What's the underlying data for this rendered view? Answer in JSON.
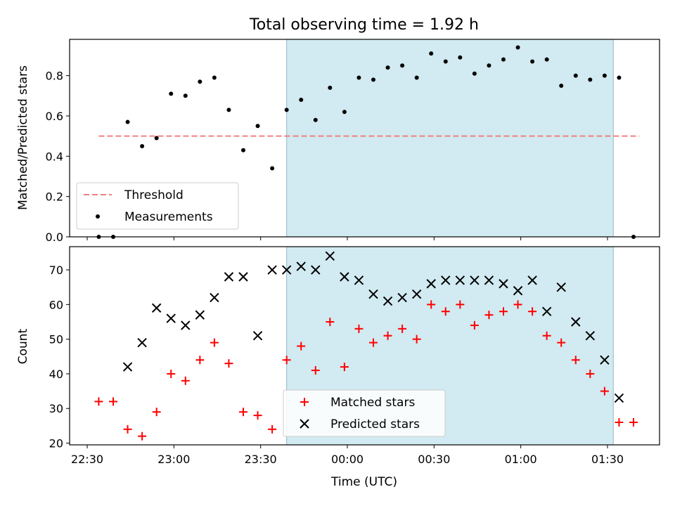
{
  "chart_data": {
    "title": "Total observing time = 1.92 h",
    "xlabel": "Time (UTC)",
    "x_ticks": [
      "22:30",
      "23:00",
      "23:30",
      "00:00",
      "00:30",
      "01:00",
      "01:30"
    ],
    "highlight_span": {
      "start": "23:39",
      "end": "01:32",
      "color": "#add8e6"
    },
    "panels": [
      {
        "type": "scatter",
        "ylabel": "Matched/Predicted stars",
        "ylim": [
          0,
          0.98
        ],
        "y_ticks": [
          "0.0",
          "0.2",
          "0.4",
          "0.6",
          "0.8"
        ],
        "threshold": {
          "name": "Threshold",
          "value": 0.5,
          "x_start": "22:34",
          "x_end": "01:41",
          "color": "#f08080"
        },
        "legend": {
          "position": "lower-left",
          "entries": [
            "Threshold",
            "Measurements"
          ]
        },
        "series": [
          {
            "name": "Measurements",
            "color": "#000000",
            "marker": "dot",
            "x": [
              "22:34",
              "22:39",
              "22:44",
              "22:49",
              "22:54",
              "22:59",
              "23:04",
              "23:09",
              "23:14",
              "23:19",
              "23:24",
              "23:29",
              "23:34",
              "23:39",
              "23:44",
              "23:49",
              "23:54",
              "23:59",
              "00:04",
              "00:09",
              "00:14",
              "00:19",
              "00:24",
              "00:29",
              "00:34",
              "00:39",
              "00:44",
              "00:49",
              "00:54",
              "00:59",
              "01:04",
              "01:09",
              "01:14",
              "01:19",
              "01:24",
              "01:29",
              "01:34",
              "01:39"
            ],
            "y": [
              0.0,
              0.0,
              0.57,
              0.45,
              0.49,
              0.71,
              0.7,
              0.77,
              0.79,
              0.63,
              0.43,
              0.55,
              0.34,
              0.63,
              0.68,
              0.58,
              0.74,
              0.62,
              0.79,
              0.78,
              0.84,
              0.85,
              0.79,
              0.91,
              0.87,
              0.89,
              0.81,
              0.85,
              0.88,
              0.94,
              0.87,
              0.88,
              0.75,
              0.8,
              0.78,
              0.8,
              0.79,
              0.0
            ]
          }
        ]
      },
      {
        "type": "scatter",
        "ylabel": "Count",
        "ylim": [
          19.5,
          76.7
        ],
        "y_ticks": [
          "20",
          "30",
          "40",
          "50",
          "60",
          "70"
        ],
        "legend": {
          "position": "lower-center",
          "entries": [
            "Matched stars",
            "Predicted stars"
          ]
        },
        "series": [
          {
            "name": "Matched stars",
            "color": "#ff0000",
            "marker": "plus",
            "x": [
              "22:34",
              "22:39",
              "22:44",
              "22:49",
              "22:54",
              "22:59",
              "23:04",
              "23:09",
              "23:14",
              "23:19",
              "23:24",
              "23:29",
              "23:34",
              "23:39",
              "23:44",
              "23:49",
              "23:54",
              "23:59",
              "00:04",
              "00:09",
              "00:14",
              "00:19",
              "00:24",
              "00:29",
              "00:34",
              "00:39",
              "00:44",
              "00:49",
              "00:54",
              "00:59",
              "01:04",
              "01:09",
              "01:14",
              "01:19",
              "01:24",
              "01:29",
              "01:34",
              "01:39"
            ],
            "y": [
              32,
              32,
              24,
              22,
              29,
              40,
              38,
              44,
              49,
              43,
              29,
              28,
              24,
              44,
              48,
              41,
              55,
              42,
              53,
              49,
              51,
              53,
              50,
              60,
              58,
              60,
              54,
              57,
              58,
              60,
              58,
              51,
              49,
              44,
              40,
              35,
              26,
              26
            ]
          },
          {
            "name": "Predicted stars",
            "color": "#000000",
            "marker": "x",
            "x": [
              "22:44",
              "22:49",
              "22:54",
              "22:59",
              "23:04",
              "23:09",
              "23:14",
              "23:19",
              "23:24",
              "23:29",
              "23:34",
              "23:39",
              "23:44",
              "23:49",
              "23:54",
              "23:59",
              "00:04",
              "00:09",
              "00:14",
              "00:19",
              "00:24",
              "00:29",
              "00:34",
              "00:39",
              "00:44",
              "00:49",
              "00:54",
              "00:59",
              "01:04",
              "01:09",
              "01:14",
              "01:19",
              "01:24",
              "01:29",
              "01:34"
            ],
            "y": [
              42,
              49,
              59,
              56,
              54,
              57,
              62,
              68,
              68,
              51,
              70,
              70,
              71,
              70,
              74,
              68,
              67,
              63,
              61,
              62,
              63,
              66,
              67,
              67,
              67,
              67,
              66,
              64,
              67,
              58,
              65,
              55,
              51,
              44,
              33
            ]
          }
        ]
      }
    ]
  }
}
